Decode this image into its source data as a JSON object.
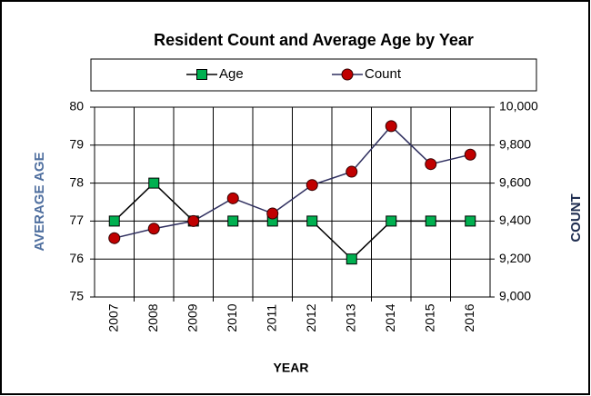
{
  "chart_data": {
    "type": "line",
    "title": "Resident Count and Average Age by Year",
    "x_label": "YEAR",
    "y_label": "AVERAGE AGE",
    "y2_label": "COUNT",
    "categories": [
      "2007",
      "2008",
      "2009",
      "2010",
      "2011",
      "2012",
      "2013",
      "2014",
      "2015",
      "2016"
    ],
    "series": [
      {
        "name": "Age",
        "color": "#00b050",
        "line_color": "#000000",
        "marker": "square",
        "values": [
          77,
          78,
          77,
          77,
          77,
          77,
          76,
          77,
          77,
          77
        ]
      },
      {
        "name": "Count",
        "color": "#c00000",
        "line_color": "#2f2f5f",
        "marker": "circle",
        "axis": "y2",
        "values": [
          9310,
          9360,
          9400,
          9520,
          9440,
          9590,
          9660,
          9900,
          9700,
          9750
        ]
      }
    ],
    "ylim": [
      75,
      80
    ],
    "yticks": [
      75,
      76,
      77,
      78,
      79,
      80
    ],
    "y2lim": [
      9000,
      10000
    ],
    "y2ticks": [
      {
        "value": 9000,
        "label": "9,000"
      },
      {
        "value": 9200,
        "label": "9,200"
      },
      {
        "value": 9400,
        "label": "9,400"
      },
      {
        "value": 9600,
        "label": "9,600"
      },
      {
        "value": 9800,
        "label": "9,800"
      },
      {
        "value": 10000,
        "label": "10,000"
      }
    ],
    "grid": true,
    "legend": "top"
  }
}
